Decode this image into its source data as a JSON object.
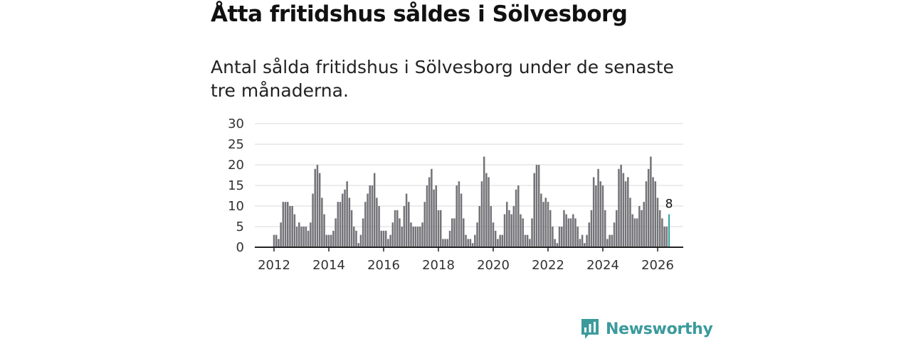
{
  "title": "Åtta fritidshus såldes i Sölvesborg",
  "subtitle": "Antal sålda fritidshus i Sölvesborg under de senaste tre månaderna.",
  "brand": {
    "name": "Newsworthy",
    "icon": "newsworthy-logo-icon",
    "color": "#3b9a9c"
  },
  "colors": {
    "bar": "#737378",
    "highlight": "#2ca0a0",
    "grid": "#d9d9d9",
    "axis": "#222222"
  },
  "chart_data": {
    "type": "bar",
    "title": "Åtta fritidshus såldes i Sölvesborg",
    "xlabel": "",
    "ylabel": "",
    "ylim": [
      0,
      30
    ],
    "yticks": [
      0,
      5,
      10,
      15,
      20,
      25,
      30
    ],
    "xticks": [
      "2012",
      "2014",
      "2016",
      "2018",
      "2020",
      "2022",
      "2024",
      "2026"
    ],
    "grid": true,
    "start": "2012-01",
    "frequency": "monthly",
    "values": [
      3,
      3,
      2,
      6,
      11,
      11,
      11,
      10,
      10,
      8,
      5,
      6,
      5,
      5,
      5,
      4,
      6,
      13,
      19,
      20,
      18,
      12,
      8,
      3,
      3,
      3,
      4,
      7,
      11,
      11,
      13,
      14,
      16,
      12,
      9,
      5,
      4,
      1,
      3,
      7,
      11,
      13,
      15,
      15,
      18,
      12,
      10,
      4,
      4,
      4,
      2,
      3,
      6,
      9,
      9,
      7,
      5,
      10,
      13,
      11,
      6,
      5,
      5,
      5,
      5,
      6,
      11,
      15,
      17,
      19,
      14,
      15,
      9,
      9,
      2,
      2,
      2,
      4,
      7,
      7,
      15,
      16,
      13,
      7,
      3,
      2,
      2,
      1,
      3,
      6,
      10,
      16,
      22,
      18,
      17,
      10,
      6,
      4,
      2,
      3,
      3,
      8,
      11,
      9,
      8,
      10,
      14,
      15,
      8,
      7,
      3,
      3,
      2,
      7,
      18,
      20,
      20,
      13,
      11,
      12,
      11,
      9,
      5,
      2,
      1,
      5,
      5,
      9,
      8,
      7,
      7,
      8,
      7,
      5,
      2,
      3,
      1,
      3,
      6,
      9,
      17,
      15,
      19,
      16,
      15,
      9,
      2,
      3,
      3,
      6,
      9,
      19,
      20,
      18,
      16,
      17,
      12,
      8,
      7,
      7,
      10,
      9,
      11,
      16,
      19,
      22,
      17,
      16,
      12,
      9,
      7,
      5,
      5,
      8
    ],
    "highlight_last": true,
    "annotations": [
      {
        "label": "8"
      }
    ]
  }
}
